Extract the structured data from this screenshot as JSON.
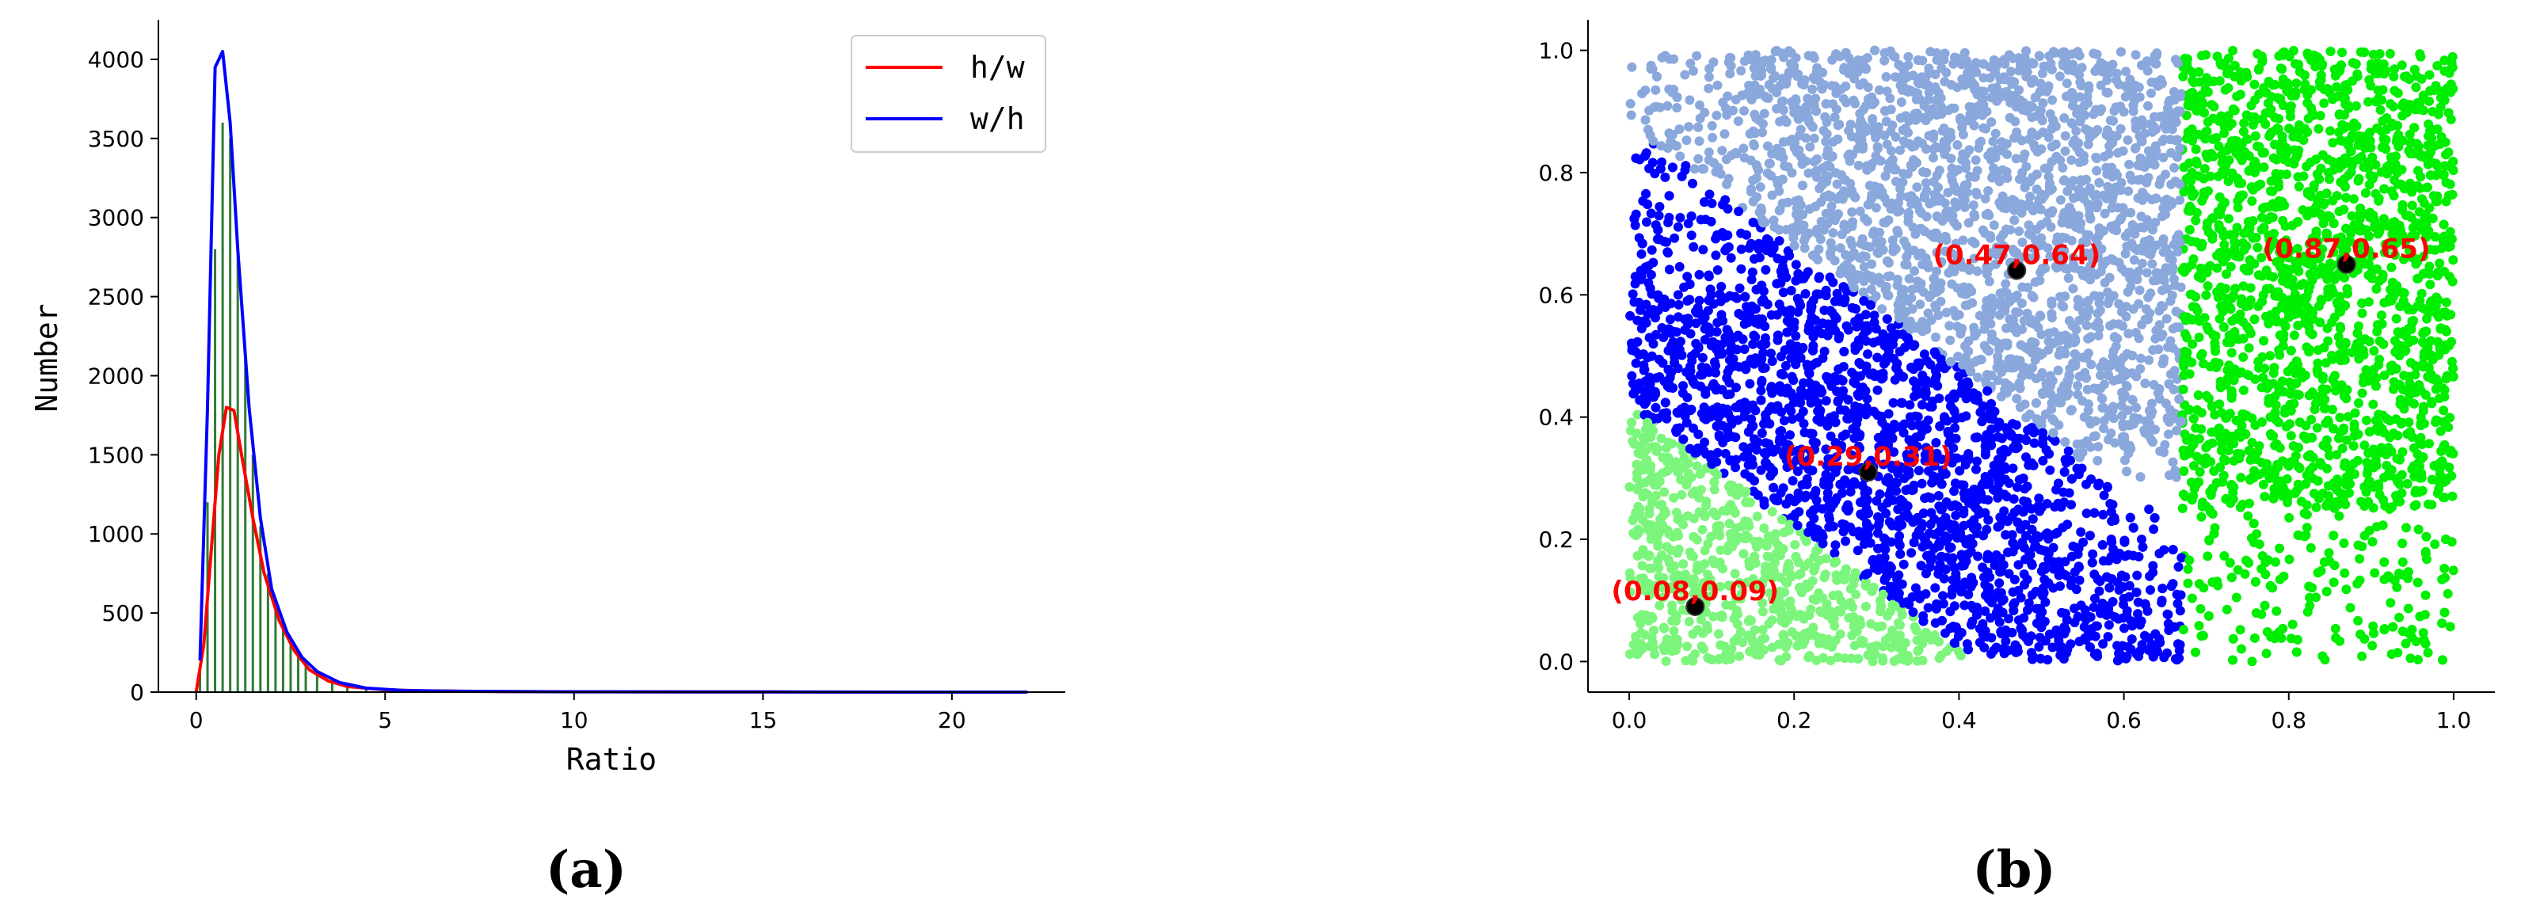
{
  "chart_data": [
    {
      "type": "line",
      "panel_label": "(a)",
      "xlabel": "Ratio",
      "ylabel": "Number",
      "xlim": [
        -1,
        23
      ],
      "ylim": [
        0,
        4250
      ],
      "xticks": [
        0,
        5,
        10,
        15,
        20
      ],
      "yticks": [
        0,
        500,
        1000,
        1500,
        2000,
        2500,
        3000,
        3500,
        4000
      ],
      "grid": false,
      "legend_position": "top-right",
      "series": [
        {
          "name": "h/w",
          "color": "#ff0000",
          "x": [
            0.0,
            0.2,
            0.4,
            0.6,
            0.8,
            1.0,
            1.2,
            1.5,
            1.8,
            2.2,
            2.6,
            3.0,
            3.5,
            4.0,
            5.0,
            6.0,
            8.0,
            10.0,
            15.0,
            20.0,
            22.0
          ],
          "y": [
            0,
            300,
            900,
            1500,
            1800,
            1780,
            1500,
            1100,
            750,
            450,
            260,
            140,
            70,
            35,
            15,
            8,
            4,
            2,
            1,
            0,
            0
          ]
        },
        {
          "name": "w/h",
          "color": "#0000ff",
          "x": [
            0.1,
            0.3,
            0.5,
            0.7,
            0.9,
            1.1,
            1.4,
            1.7,
            2.0,
            2.4,
            2.8,
            3.2,
            3.8,
            4.5,
            5.5,
            7.0,
            10.0,
            15.0,
            20.0,
            22.0
          ],
          "y": [
            200,
            1800,
            3950,
            4050,
            3600,
            2800,
            1800,
            1100,
            650,
            380,
            220,
            130,
            60,
            25,
            10,
            5,
            2,
            1,
            0,
            0
          ]
        },
        {
          "name": "",
          "kind": "histogram",
          "color": "#2e7d32",
          "x": [
            0.1,
            0.3,
            0.5,
            0.7,
            0.9,
            1.1,
            1.3,
            1.5,
            1.7,
            1.9,
            2.1,
            2.3,
            2.5,
            2.7,
            2.9,
            3.2,
            3.6,
            4.0,
            4.5,
            5.0
          ],
          "y": [
            150,
            1200,
            2800,
            3600,
            3500,
            2800,
            2100,
            1500,
            1050,
            750,
            550,
            420,
            320,
            240,
            180,
            120,
            70,
            40,
            20,
            10
          ]
        }
      ]
    },
    {
      "type": "scatter",
      "panel_label": "(b)",
      "xlabel": "",
      "ylabel": "",
      "xlim": [
        -0.05,
        1.05
      ],
      "ylim": [
        -0.05,
        1.05
      ],
      "xticks": [
        0.0,
        0.2,
        0.4,
        0.6,
        0.8,
        1.0
      ],
      "yticks": [
        0.0,
        0.2,
        0.4,
        0.6,
        0.8,
        1.0
      ],
      "xtick_labels": [
        "0.0",
        "0.2",
        "0.4",
        "0.6",
        "0.8",
        "1.0"
      ],
      "ytick_labels": [
        "0.0",
        "0.2",
        "0.4",
        "0.6",
        "0.8",
        "1.0"
      ],
      "grid": false,
      "clusters": [
        {
          "color": "#7cf57c",
          "region": "x+y<=0.42"
        },
        {
          "color": "#0000ff",
          "region": "0.42<x+y<=0.88"
        },
        {
          "color": "#8aa8dc",
          "region": "x+y>0.88 and x<0.67"
        },
        {
          "color": "#00ee00",
          "region": "x>=0.67"
        }
      ],
      "centroids": [
        {
          "x": 0.08,
          "y": 0.09,
          "label": "(0.08,0.09)"
        },
        {
          "x": 0.29,
          "y": 0.31,
          "label": "(0.29,0.31)"
        },
        {
          "x": 0.47,
          "y": 0.64,
          "label": "(0.47,0.64)"
        },
        {
          "x": 0.87,
          "y": 0.65,
          "label": "(0.87,0.65)"
        }
      ]
    }
  ]
}
